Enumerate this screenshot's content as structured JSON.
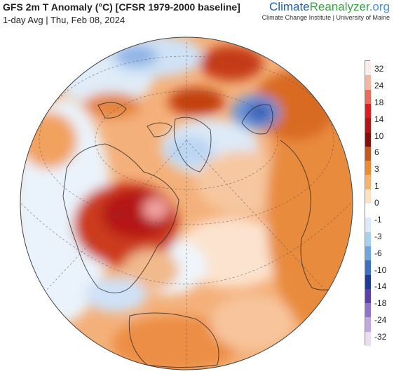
{
  "header": {
    "title": "GFS 2m T Anomaly (°C) [CFSR 1979-2000 baseline]",
    "subtitle": "1-day Avg | Thu, Feb 08, 2024"
  },
  "brand": {
    "name_part1": "Climate",
    "name_part2": "Reanalyzer",
    "name_part3": ".org",
    "affiliation": "Climate Change Institute | University of Maine"
  },
  "legend": {
    "ticks": [
      "32",
      "24",
      "18",
      "14",
      "10",
      "6",
      "3",
      "1",
      "0",
      "-1",
      "-3",
      "-6",
      "-10",
      "-14",
      "-18",
      "-24",
      "-32"
    ],
    "colors": [
      "#fdece7",
      "#f5b5a3",
      "#ec6b5b",
      "#e21c1c",
      "#b81414",
      "#8a0c0c",
      "#c9561a",
      "#ef8a2f",
      "#f7b26b",
      "#fde1c0",
      "#ffffff",
      "#dbeafa",
      "#a8cff2",
      "#6da6e2",
      "#3b70c7",
      "#1e3a9e",
      "#5a3fb0",
      "#8f74cc",
      "#bfa8e1",
      "#e9ddf2"
    ]
  },
  "colors": {
    "ocean_warm": "#f3a66a",
    "hot": "#b81414",
    "cold": "#3b70c7"
  }
}
